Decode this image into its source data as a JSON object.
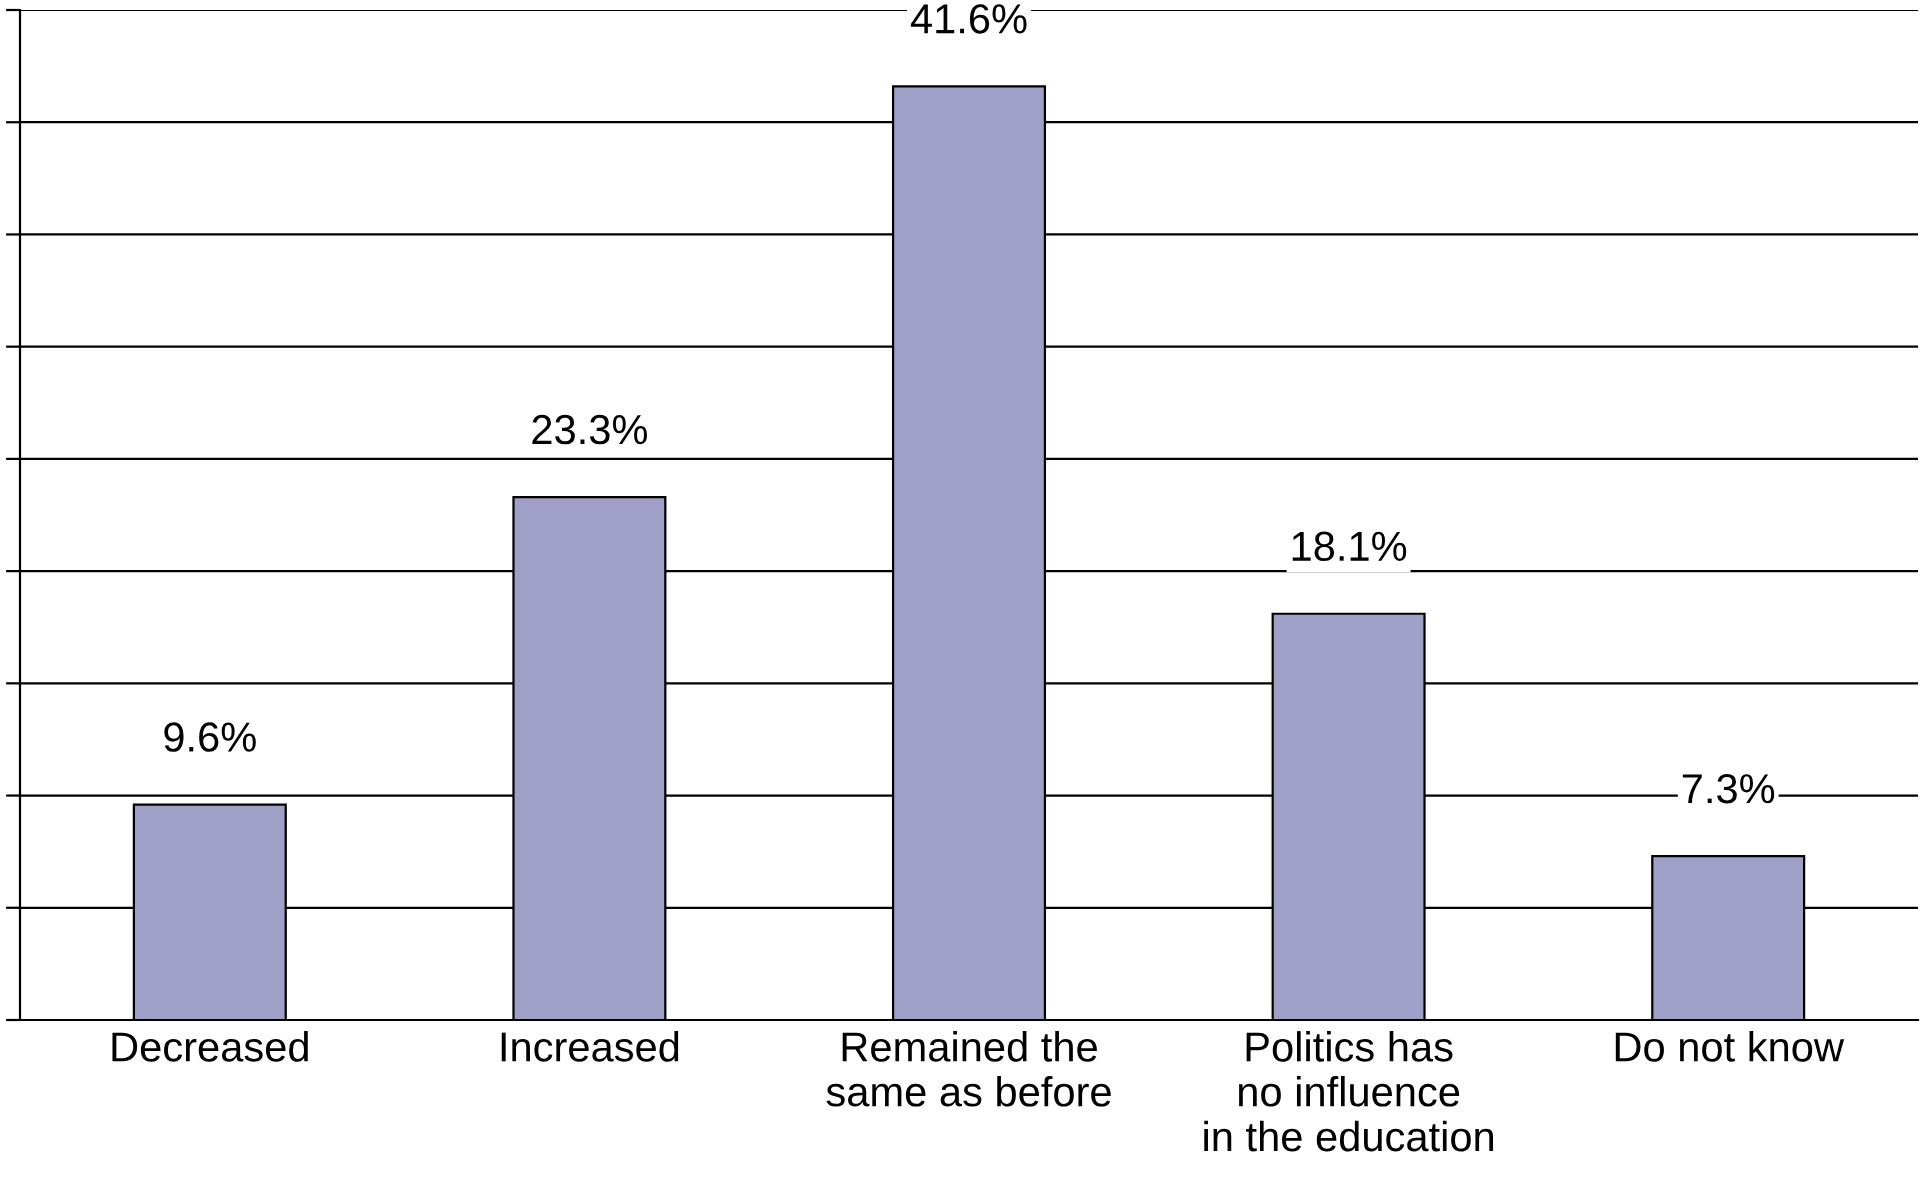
{
  "chart_data": {
    "type": "bar",
    "categories": [
      "Decreased",
      "Increased",
      "Remained the\nsame as before",
      "Politics has\nno influence\nin the education",
      "Do not know"
    ],
    "values": [
      9.6,
      23.3,
      41.6,
      18.1,
      7.3
    ],
    "value_labels": [
      "9.6%",
      "23.3%",
      "41.6%",
      "18.1%",
      "7.3%"
    ],
    "color": "#a09fc8",
    "ylim": [
      0,
      45
    ],
    "yticks": [
      {
        "value": 0,
        "label": null
      },
      {
        "value": 5,
        "label": null
      },
      {
        "value": 10,
        "label": null
      },
      {
        "value": 15,
        "label": null
      },
      {
        "value": 20,
        "label": null
      },
      {
        "value": 25,
        "label": null
      },
      {
        "value": 30,
        "label": null
      },
      {
        "value": 35,
        "label": null
      },
      {
        "value": 40,
        "label": null
      },
      {
        "value": 45,
        "label": null
      }
    ],
    "grid": "y",
    "tick_labels": "x",
    "legend": false
  }
}
